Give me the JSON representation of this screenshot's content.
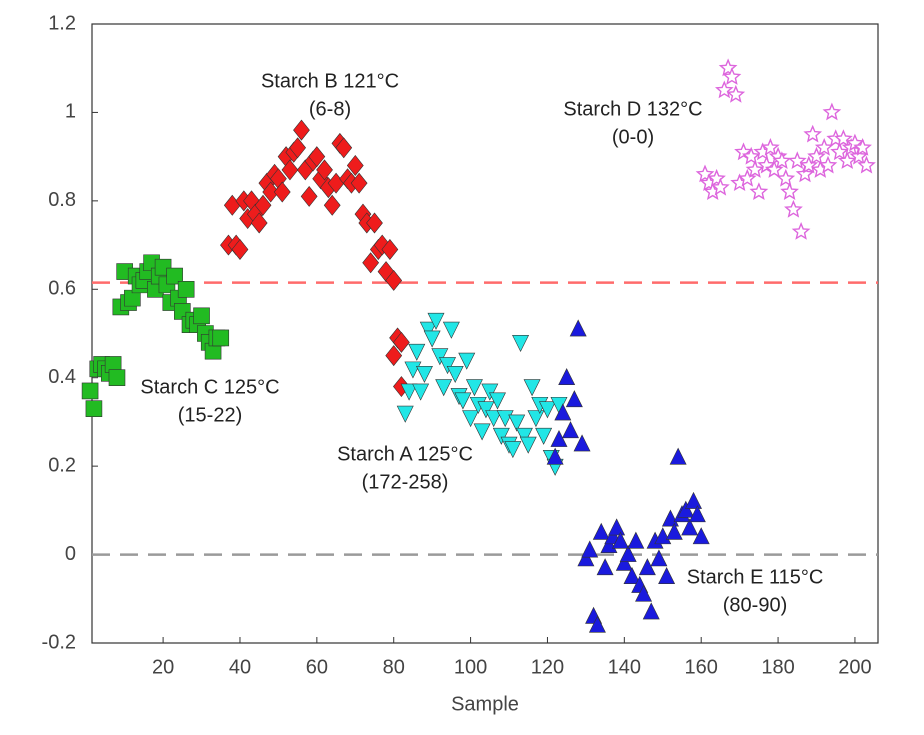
{
  "chart_data": {
    "type": "scatter",
    "xlabel": "Sample",
    "xlim": [
      1.5,
      206
    ],
    "ylim": [
      -0.2,
      1.2
    ],
    "xticks": [
      20,
      40,
      60,
      80,
      100,
      120,
      140,
      160,
      180,
      200
    ],
    "yticks": [
      -0.2,
      0,
      0.2,
      0.4,
      0.6,
      0.8,
      1,
      1.2
    ],
    "hlines": [
      {
        "value": 0.615,
        "color": "#ff6b6b"
      },
      {
        "value": 0,
        "color": "#9a9a9a"
      }
    ],
    "annotations": [
      {
        "lines": [
          "Starch B 121°C",
          "(6-8)"
        ]
      },
      {
        "lines": [
          "Starch D 132°C",
          "(0-0)"
        ]
      },
      {
        "lines": [
          "Starch C 125°C",
          "(15-22)"
        ]
      },
      {
        "lines": [
          "Starch A 125°C",
          "(172-258)"
        ]
      },
      {
        "lines": [
          "Starch E 115°C",
          "(80-90)"
        ]
      }
    ],
    "series": [
      {
        "color": "#ee1c1c",
        "marker": "diamond",
        "x": [
          37,
          38,
          39,
          40,
          41,
          42,
          43,
          44,
          45,
          46,
          47,
          48,
          49,
          50,
          51,
          52,
          53,
          54,
          55,
          56,
          57,
          58,
          59,
          60,
          61,
          62,
          63,
          64,
          65,
          66,
          67,
          68,
          69,
          70,
          71,
          72,
          73,
          74,
          75,
          76,
          77,
          78,
          79,
          80,
          81,
          82,
          80,
          82
        ],
        "values": [
          0.7,
          0.79,
          0.7,
          0.69,
          0.8,
          0.76,
          0.8,
          0.77,
          0.75,
          0.79,
          0.84,
          0.82,
          0.86,
          0.85,
          0.82,
          0.9,
          0.87,
          0.91,
          0.92,
          0.96,
          0.87,
          0.81,
          0.89,
          0.9,
          0.85,
          0.87,
          0.83,
          0.79,
          0.84,
          0.93,
          0.92,
          0.85,
          0.84,
          0.88,
          0.84,
          0.77,
          0.75,
          0.66,
          0.75,
          0.69,
          0.7,
          0.64,
          0.69,
          0.62,
          0.49,
          0.48,
          0.45,
          0.38
        ]
      },
      {
        "color": "#dd66dd",
        "marker": "star",
        "x": [
          161,
          162,
          163,
          164,
          165,
          166,
          167,
          168,
          169,
          170,
          171,
          172,
          173,
          174,
          175,
          176,
          177,
          178,
          179,
          180,
          181,
          182,
          183,
          184,
          185,
          186,
          187,
          188,
          189,
          190,
          191,
          192,
          193,
          194,
          195,
          196,
          197,
          198,
          199,
          200,
          201,
          202,
          203
        ],
        "values": [
          0.86,
          0.84,
          0.82,
          0.85,
          0.83,
          1.05,
          1.1,
          1.08,
          1.04,
          0.84,
          0.91,
          0.85,
          0.9,
          0.87,
          0.82,
          0.91,
          0.88,
          0.92,
          0.87,
          0.9,
          0.89,
          0.85,
          0.82,
          0.78,
          0.89,
          0.73,
          0.86,
          0.88,
          0.95,
          0.9,
          0.87,
          0.92,
          0.88,
          1.0,
          0.94,
          0.91,
          0.94,
          0.89,
          0.92,
          0.93,
          0.9,
          0.92,
          0.88
        ]
      },
      {
        "color": "#22bb22",
        "marker": "square",
        "x": [
          1,
          2,
          3,
          4,
          5,
          6,
          7,
          8,
          9,
          10,
          11,
          12,
          13,
          14,
          15,
          16,
          17,
          18,
          19,
          20,
          21,
          22,
          23,
          24,
          25,
          26,
          27,
          28,
          29,
          30,
          31,
          32,
          33,
          34,
          35
        ],
        "values": [
          0.37,
          0.33,
          0.42,
          0.43,
          0.42,
          0.41,
          0.43,
          0.4,
          0.56,
          0.64,
          0.57,
          0.58,
          0.63,
          0.61,
          0.62,
          0.64,
          0.66,
          0.6,
          0.63,
          0.65,
          0.61,
          0.57,
          0.63,
          0.58,
          0.55,
          0.6,
          0.52,
          0.53,
          0.52,
          0.54,
          0.5,
          0.48,
          0.46,
          0.49,
          0.49
        ]
      },
      {
        "color": "#22e6e6",
        "marker": "triangle-down",
        "x": [
          83,
          84,
          85,
          86,
          87,
          88,
          89,
          90,
          91,
          92,
          93,
          94,
          95,
          96,
          97,
          98,
          99,
          100,
          101,
          102,
          103,
          104,
          105,
          106,
          107,
          108,
          109,
          110,
          111,
          112,
          113,
          114,
          115,
          116,
          117,
          118,
          119,
          120,
          121,
          122,
          123
        ],
        "values": [
          0.32,
          0.37,
          0.42,
          0.46,
          0.37,
          0.41,
          0.51,
          0.49,
          0.53,
          0.45,
          0.38,
          0.43,
          0.51,
          0.41,
          0.36,
          0.35,
          0.44,
          0.31,
          0.38,
          0.34,
          0.28,
          0.33,
          0.37,
          0.31,
          0.35,
          0.27,
          0.31,
          0.25,
          0.24,
          0.3,
          0.48,
          0.27,
          0.25,
          0.38,
          0.31,
          0.34,
          0.27,
          0.33,
          0.22,
          0.2,
          0.34
        ]
      },
      {
        "color": "#1a1add",
        "marker": "triangle-up",
        "x": [
          122,
          123,
          124,
          125,
          126,
          127,
          128,
          129,
          130,
          131,
          132,
          133,
          134,
          135,
          136,
          137,
          138,
          139,
          140,
          141,
          142,
          143,
          144,
          145,
          146,
          147,
          148,
          149,
          150,
          151,
          152,
          153,
          154,
          155,
          156,
          157,
          158,
          159,
          160
        ],
        "values": [
          0.22,
          0.26,
          0.32,
          0.4,
          0.28,
          0.35,
          0.51,
          0.25,
          -0.01,
          0.01,
          -0.14,
          -0.16,
          0.05,
          -0.03,
          0.02,
          0.04,
          0.06,
          0.03,
          -0.02,
          0.0,
          -0.05,
          0.03,
          -0.07,
          -0.09,
          -0.03,
          -0.13,
          0.03,
          -0.01,
          0.04,
          -0.05,
          0.08,
          0.05,
          0.22,
          0.09,
          0.1,
          0.06,
          0.12,
          0.09,
          0.04
        ]
      }
    ]
  }
}
